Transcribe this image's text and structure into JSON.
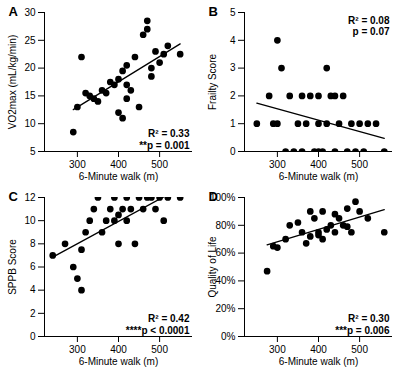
{
  "chart_data": [
    {
      "type": "scatter",
      "panel": "A",
      "xlabel": "6-Minute walk (m)",
      "ylabel": "VO2max (mL/kg/min)",
      "color": "#000000",
      "annotations": [
        "R² = 0.33",
        "**p = 0.001"
      ],
      "x": [
        290,
        300,
        310,
        320,
        330,
        340,
        350,
        360,
        370,
        380,
        390,
        400,
        400,
        410,
        410,
        420,
        420,
        430,
        440,
        450,
        460,
        470,
        470,
        480,
        480,
        490,
        500,
        510,
        520,
        550,
        420
      ],
      "values": [
        8.5,
        13,
        22,
        15.5,
        15,
        14.5,
        14,
        16,
        15.5,
        17.5,
        17,
        18,
        12,
        11,
        19.5,
        14.5,
        17,
        16,
        22,
        13,
        26,
        28.5,
        27,
        20,
        18.5,
        23,
        21,
        22.5,
        24,
        22.5,
        20.5
      ],
      "xlim": [
        220,
        580
      ],
      "xticks": [
        300,
        400,
        500
      ],
      "ylim": [
        5,
        30
      ],
      "yticks": [
        5,
        10,
        15,
        20,
        25,
        30
      ]
    },
    {
      "type": "scatter",
      "panel": "B",
      "xlabel": "6-Minute walk (m)",
      "ylabel": "Frailty Score",
      "color": "#000000",
      "annotations": [
        "R² = 0.08",
        "p = 0.07"
      ],
      "x": [
        300,
        290,
        310,
        300,
        320,
        330,
        340,
        350,
        360,
        370,
        380,
        390,
        400,
        400,
        410,
        420,
        420,
        430,
        440,
        450,
        460,
        470,
        480,
        490,
        500,
        510,
        520,
        540,
        560,
        250,
        280,
        440,
        400,
        360
      ],
      "values": [
        4,
        1,
        3,
        1,
        0,
        2,
        0,
        1,
        0,
        1,
        2,
        0,
        1,
        2,
        0,
        1,
        3,
        2,
        0,
        1,
        2,
        0,
        1,
        0,
        1,
        0,
        1,
        1,
        0,
        1,
        2,
        2,
        0,
        2
      ],
      "xlim": [
        220,
        580
      ],
      "xticks": [
        300,
        400,
        500
      ],
      "ylim": [
        0,
        5
      ],
      "yticks": [
        0,
        1,
        2,
        3,
        4,
        5
      ]
    },
    {
      "type": "scatter",
      "panel": "C",
      "xlabel": "6-Minute walk (m)",
      "ylabel": "SPPB Score",
      "color": "#000000",
      "annotations": [
        "R² = 0.42",
        "****p < 0.0001"
      ],
      "x": [
        240,
        270,
        290,
        300,
        310,
        310,
        320,
        330,
        340,
        350,
        360,
        370,
        380,
        390,
        400,
        400,
        410,
        420,
        430,
        440,
        450,
        460,
        470,
        480,
        490,
        500,
        510,
        520,
        550,
        390,
        420
      ],
      "values": [
        7,
        8,
        6,
        5,
        4,
        7.5,
        9,
        10,
        11,
        12,
        9,
        10,
        11,
        10,
        8,
        10.5,
        11,
        12,
        11,
        8,
        12,
        11,
        12,
        12,
        11,
        12,
        10,
        12,
        12,
        12,
        10
      ],
      "xlim": [
        220,
        580
      ],
      "xticks": [
        300,
        400,
        500
      ],
      "ylim": [
        0,
        12
      ],
      "yticks": [
        0,
        2,
        4,
        6,
        8,
        10,
        12
      ]
    },
    {
      "type": "scatter",
      "panel": "D",
      "xlabel": "6-Minute walk (m)",
      "ylabel": "Quality of Life",
      "color": "#000000",
      "annotations": [
        "R² = 0.30",
        "***p = 0.006"
      ],
      "x": [
        275,
        290,
        300,
        320,
        330,
        350,
        360,
        370,
        380,
        390,
        400,
        400,
        410,
        420,
        430,
        440,
        450,
        460,
        470,
        480,
        490,
        500,
        520,
        560,
        380,
        410,
        440,
        470
      ],
      "values": [
        47,
        65,
        64,
        70,
        80,
        82,
        75,
        67,
        72,
        85,
        75,
        73,
        90,
        77,
        80,
        75,
        85,
        80,
        92,
        75,
        97,
        90,
        85,
        75,
        90,
        70,
        88,
        79
      ],
      "xlim": [
        220,
        580
      ],
      "xticks": [
        300,
        400,
        500
      ],
      "ylim": [
        0,
        100
      ],
      "yticks": [
        {
          "value": 0,
          "label": "0%"
        },
        {
          "value": 20,
          "label": "20%"
        },
        {
          "value": 40,
          "label": "40%"
        },
        {
          "value": 60,
          "label": "60%"
        },
        {
          "value": 80,
          "label": "80%"
        },
        {
          "value": 100,
          "label": "100%"
        }
      ]
    }
  ]
}
